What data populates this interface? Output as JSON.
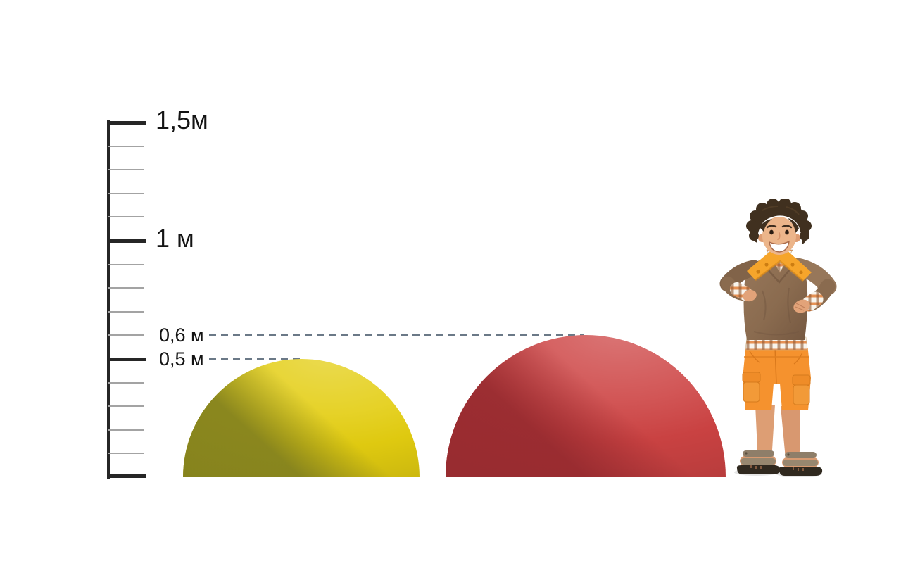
{
  "scene": {
    "background": "#ffffff",
    "description": "Size comparison of two play hemispheres with a measuring scale and a child shown for scale"
  },
  "ruler": {
    "unit": "м",
    "unit_max_m": 1.5,
    "minor_step_m": 0.1,
    "major_step_m": 0.5,
    "labels": [
      {
        "text": "1,5м",
        "value_m": 1.5,
        "size": "large"
      },
      {
        "text": "1 м",
        "value_m": 1.0,
        "size": "large"
      },
      {
        "text": "0,6 м",
        "value_m": 0.6,
        "size": "small"
      },
      {
        "text": "0,5 м",
        "value_m": 0.5,
        "size": "small"
      }
    ]
  },
  "guides": [
    {
      "value_m": 0.6,
      "color": "#6b7987"
    },
    {
      "value_m": 0.5,
      "color": "#6b7987"
    }
  ],
  "shapes": [
    {
      "name": "yellow-hemisphere",
      "height_m": 0.5,
      "color": "#e3cd10",
      "shadow_color": "#7b7b20"
    },
    {
      "name": "red-hemisphere",
      "height_m": 0.6,
      "color": "#cd4343",
      "shadow_color": "#93292e"
    }
  ],
  "person": {
    "role": "child-for-scale",
    "jacket_color": "#8a6b4f",
    "collar_color": "#f6a52b",
    "shorts_color": "#f5922e"
  }
}
